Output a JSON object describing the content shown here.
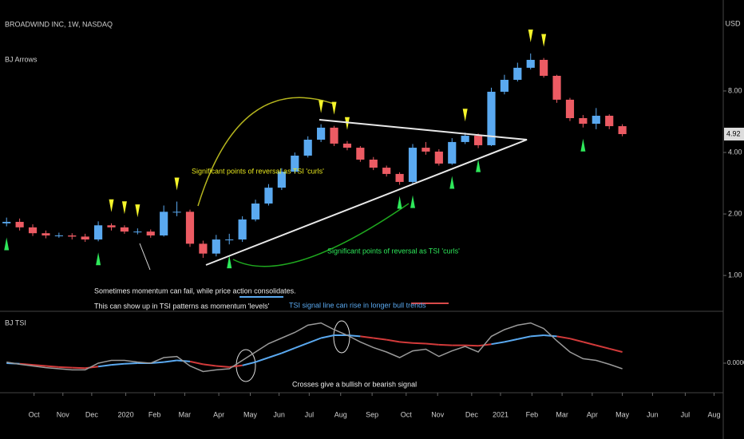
{
  "chart_data": [
    {
      "type": "candlestick",
      "title": "BROADWIND INC, 1W, NASDAQ",
      "subtitle": "BJ Arrows",
      "currency": "USD",
      "annotations": [
        "Significant points of reversal as TSI 'curls'",
        "Significant points of reversal as TSI 'curls'",
        "Sometimes momentum can fail, while price action consolidates.",
        "This can show up in TSI patterns as momentum 'levels'"
      ],
      "open": [
        1.8,
        1.83,
        1.72,
        1.61,
        1.57,
        1.57,
        1.55,
        1.5,
        1.76,
        1.72,
        1.64,
        1.64,
        1.57,
        2.05,
        2.05,
        1.43,
        1.28,
        1.5,
        1.5,
        1.88,
        2.25,
        2.69,
        3.22,
        3.86,
        4.62,
        5.29,
        4.42,
        4.22,
        3.69,
        3.37,
        3.14,
        2.87,
        4.22,
        4.04,
        3.53,
        4.5,
        4.83,
        4.34,
        7.93,
        9.07,
        10.39,
        11.36,
        9.49,
        7.25,
        5.89,
        5.53,
        6.05,
        5.38
      ],
      "high": [
        1.92,
        1.9,
        1.78,
        1.66,
        1.62,
        1.61,
        1.6,
        1.84,
        1.8,
        1.76,
        1.7,
        1.68,
        2.2,
        2.3,
        2.1,
        1.48,
        1.58,
        1.6,
        1.95,
        2.35,
        2.8,
        3.35,
        4.0,
        4.8,
        5.5,
        5.4,
        4.55,
        4.3,
        3.8,
        3.45,
        3.2,
        4.4,
        4.5,
        4.15,
        4.7,
        5.0,
        4.95,
        8.3,
        9.6,
        11.0,
        12.2,
        11.6,
        9.6,
        7.4,
        6.1,
        6.6,
        6.15,
        5.5
      ],
      "low": [
        1.74,
        1.66,
        1.56,
        1.52,
        1.53,
        1.5,
        1.46,
        1.47,
        1.66,
        1.6,
        1.59,
        1.53,
        1.55,
        1.95,
        1.38,
        1.22,
        1.24,
        1.42,
        1.46,
        1.84,
        2.2,
        2.62,
        3.15,
        3.78,
        4.5,
        4.3,
        4.1,
        3.6,
        3.28,
        3.05,
        2.78,
        2.8,
        3.9,
        3.45,
        3.48,
        4.4,
        4.2,
        4.3,
        7.7,
        8.9,
        10.2,
        9.3,
        7.0,
        5.7,
        5.3,
        5.2,
        5.2,
        4.8
      ],
      "close": [
        1.83,
        1.72,
        1.61,
        1.57,
        1.57,
        1.55,
        1.5,
        1.76,
        1.72,
        1.64,
        1.64,
        1.57,
        2.05,
        2.05,
        1.43,
        1.28,
        1.5,
        1.5,
        1.88,
        2.25,
        2.69,
        3.22,
        3.86,
        4.62,
        5.29,
        4.42,
        4.22,
        3.69,
        3.37,
        3.14,
        2.87,
        4.22,
        4.04,
        3.53,
        4.5,
        4.83,
        4.34,
        7.93,
        9.07,
        10.39,
        11.36,
        9.49,
        7.25,
        5.89,
        5.53,
        6.05,
        5.38,
        4.92
      ],
      "up_color": "#5aa9f0",
      "down_color": "#ec5b63",
      "sell_arrows": [
        8,
        9,
        10,
        13,
        24,
        25,
        26,
        35,
        40,
        41
      ],
      "buy_arrows": [
        0,
        7,
        17,
        30,
        31,
        34,
        36,
        44
      ],
      "sell_color": "#f5f52a",
      "buy_color": "#2ee85a",
      "log_scale": true,
      "xlim": [
        -0.5,
        54.7
      ],
      "ylim": [
        0.68,
        22.3
      ],
      "yticks": [
        {
          "value": 1,
          "label": "1.00"
        },
        {
          "value": 2,
          "label": "2.00"
        },
        {
          "value": 4,
          "label": "4.00"
        },
        {
          "value": 8,
          "label": "8.00"
        }
      ],
      "xticks": [
        {
          "value": 2.1,
          "label": "Oct"
        },
        {
          "value": 4.3,
          "label": "Nov"
        },
        {
          "value": 6.5,
          "label": "Dec"
        },
        {
          "value": 9.1,
          "label": "2020"
        },
        {
          "value": 11.3,
          "label": "Feb"
        },
        {
          "value": 13.6,
          "label": "Mar"
        },
        {
          "value": 16.2,
          "label": "Apr"
        },
        {
          "value": 18.6,
          "label": "May"
        },
        {
          "value": 20.8,
          "label": "Jun"
        },
        {
          "value": 23.1,
          "label": "Jul"
        },
        {
          "value": 25.5,
          "label": "Aug"
        },
        {
          "value": 27.9,
          "label": "Sep"
        },
        {
          "value": 30.5,
          "label": "Oct"
        },
        {
          "value": 32.9,
          "label": "Nov"
        },
        {
          "value": 35.5,
          "label": "Dec"
        },
        {
          "value": 37.7,
          "label": "2021"
        },
        {
          "value": 40.1,
          "label": "Feb"
        },
        {
          "value": 42.4,
          "label": "Mar"
        },
        {
          "value": 44.7,
          "label": "Apr"
        },
        {
          "value": 47.0,
          "label": "May"
        },
        {
          "value": 49.3,
          "label": "Jun"
        },
        {
          "value": 51.8,
          "label": "Jul"
        },
        {
          "value": 54.0,
          "label": "Aug"
        }
      ]
    },
    {
      "type": "line",
      "title": "BJ TSI",
      "annotations": [
        "TSI signal line can rise in longer bull trends",
        "Crosses give a bullish or bearish signal"
      ],
      "ylim": [
        -0.5,
        0.9
      ],
      "yticks": [
        {
          "value": 0,
          "label": "0.0000"
        }
      ],
      "series": [
        {
          "name": "TSI",
          "color": "#9a9a9a",
          "values": [
            0.02,
            -0.02,
            -0.05,
            -0.08,
            -0.1,
            -0.12,
            -0.12,
            0.0,
            0.05,
            0.05,
            0.02,
            0.0,
            0.1,
            0.12,
            -0.05,
            -0.15,
            -0.12,
            -0.1,
            0.05,
            0.2,
            0.35,
            0.45,
            0.55,
            0.68,
            0.72,
            0.6,
            0.5,
            0.38,
            0.28,
            0.2,
            0.1,
            0.22,
            0.25,
            0.12,
            0.22,
            0.3,
            0.2,
            0.48,
            0.6,
            0.68,
            0.72,
            0.62,
            0.4,
            0.2,
            0.08,
            0.05,
            -0.02,
            -0.1
          ]
        },
        {
          "name": "Signal",
          "color": "#d23a3a",
          "values": [
            0.0,
            -0.01,
            -0.03,
            -0.05,
            -0.07,
            -0.08,
            -0.09,
            -0.06,
            -0.03,
            -0.01,
            0.0,
            0.0,
            0.02,
            0.05,
            0.03,
            -0.02,
            -0.05,
            -0.07,
            -0.04,
            0.02,
            0.1,
            0.18,
            0.27,
            0.36,
            0.45,
            0.5,
            0.5,
            0.48,
            0.45,
            0.42,
            0.38,
            0.36,
            0.35,
            0.33,
            0.32,
            0.32,
            0.31,
            0.34,
            0.38,
            0.43,
            0.48,
            0.5,
            0.48,
            0.44,
            0.38,
            0.32,
            0.26,
            0.2
          ]
        }
      ],
      "bull_color": "#5aa9f0"
    }
  ]
}
